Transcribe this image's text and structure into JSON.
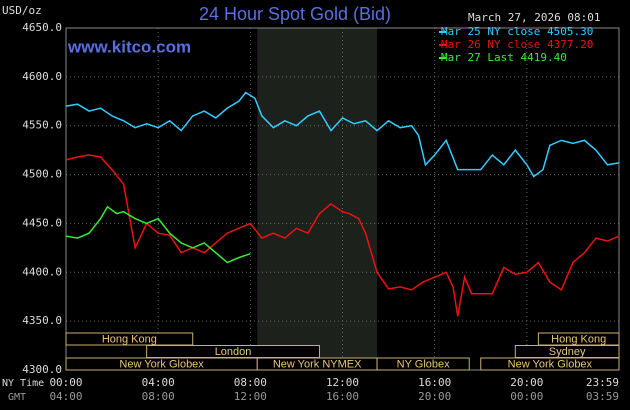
{
  "chart_data": {
    "type": "line",
    "title": "24 Hour Spot Gold (Bid)",
    "y_label": "USD/oz",
    "timestamp": "March 27, 2026 08:01",
    "source": "www.kitco.com",
    "x_label": "NY Time",
    "x2_label": "GMT",
    "xlim": [
      0,
      24
    ],
    "ylim": [
      4300,
      4650
    ],
    "xticks": [
      {
        "value": 0,
        "label": "00:00"
      },
      {
        "value": 4,
        "label": "04:00"
      },
      {
        "value": 8,
        "label": "08:00"
      },
      {
        "value": 12,
        "label": "12:00"
      },
      {
        "value": 16,
        "label": "16:00"
      },
      {
        "value": 20,
        "label": "20:00"
      },
      {
        "value": 24,
        "label": "23:59"
      }
    ],
    "x2tick_labels": [
      "04:00",
      "08:00",
      "12:00",
      "16:00",
      "20:00",
      "00:00",
      "03:59"
    ],
    "yticks": [
      {
        "value": 4300,
        "label": "4300.0"
      },
      {
        "value": 4350,
        "label": "4350.0"
      },
      {
        "value": 4400,
        "label": "4400.0"
      },
      {
        "value": 4450,
        "label": "4450.0"
      },
      {
        "value": 4500,
        "label": "4500.0"
      },
      {
        "value": 4550,
        "label": "4550.0"
      },
      {
        "value": 4600,
        "label": "4600.0"
      },
      {
        "value": 4650,
        "label": "4650.0"
      }
    ],
    "grid": true,
    "shade": [
      8.3,
      13.5
    ],
    "sessions": [
      {
        "label": "Hong Kong",
        "row": 0,
        "start": 0,
        "end": 5.5
      },
      {
        "label": "Hong Kong",
        "row": 0,
        "start": 20.5,
        "end": 24
      },
      {
        "label": "London",
        "row": 1,
        "start": 3.5,
        "end": 11
      },
      {
        "label": "Sydney",
        "row": 1,
        "start": 19.5,
        "end": 24
      },
      {
        "label": "New York Globex",
        "row": 2,
        "start": 0,
        "end": 8.3
      },
      {
        "label": "New York NYMEX",
        "row": 2,
        "start": 8.3,
        "end": 13.5
      },
      {
        "label": "NY Globex",
        "row": 2,
        "start": 13.5,
        "end": 17.5
      },
      {
        "label": "New York Globex",
        "row": 2,
        "start": 18,
        "end": 24
      }
    ],
    "series": [
      {
        "name": "Mar 25 NY close 4505.30",
        "color": "#33ccff",
        "x": [
          0,
          0.5,
          1,
          1.5,
          2,
          2.5,
          3,
          3.5,
          4,
          4.5,
          5,
          5.5,
          6,
          6.5,
          7,
          7.5,
          7.8,
          8.2,
          8.5,
          9,
          9.5,
          10,
          10.5,
          11,
          11.5,
          12,
          12.5,
          13,
          13.5,
          14,
          14.5,
          15,
          15.3,
          15.6,
          16,
          16.5,
          17,
          17.5,
          18,
          18.5,
          19,
          19.5,
          20,
          20.3,
          20.7,
          21,
          21.5,
          22,
          22.5,
          23,
          23.5,
          24
        ],
        "values": [
          4570,
          4572,
          4565,
          4568,
          4560,
          4555,
          4548,
          4552,
          4548,
          4555,
          4545,
          4560,
          4565,
          4558,
          4568,
          4575,
          4584,
          4578,
          4560,
          4548,
          4555,
          4550,
          4560,
          4565,
          4545,
          4558,
          4552,
          4555,
          4545,
          4555,
          4548,
          4550,
          4540,
          4510,
          4520,
          4535,
          4505,
          4505,
          4505,
          4520,
          4510,
          4525,
          4510,
          4498,
          4505,
          4530,
          4535,
          4532,
          4535,
          4525,
          4510,
          4512
        ]
      },
      {
        "name": "Mar 26 NY close 4377.20",
        "color": "#ee1111",
        "x": [
          0,
          0.5,
          1,
          1.5,
          2,
          2.5,
          3,
          3.5,
          4,
          4.5,
          5,
          5.5,
          6,
          6.5,
          7,
          7.5,
          8,
          8.5,
          9,
          9.5,
          10,
          10.5,
          11,
          11.5,
          12,
          12.3,
          12.7,
          13,
          13.5,
          14,
          14.5,
          15,
          15.5,
          16,
          16.5,
          16.8,
          17,
          17.3,
          17.6,
          18,
          18.5,
          19,
          19.5,
          20,
          20.5,
          21,
          21.5,
          22,
          22.5,
          23,
          23.5,
          24
        ],
        "values": [
          4515,
          4518,
          4520,
          4518,
          4505,
          4490,
          4425,
          4450,
          4440,
          4438,
          4420,
          4425,
          4420,
          4430,
          4440,
          4445,
          4450,
          4435,
          4440,
          4435,
          4445,
          4440,
          4460,
          4470,
          4462,
          4460,
          4455,
          4440,
          4400,
          4383,
          4385,
          4382,
          4390,
          4395,
          4400,
          4385,
          4355,
          4395,
          4378,
          4378,
          4378,
          4405,
          4398,
          4400,
          4410,
          4390,
          4382,
          4410,
          4420,
          4435,
          4432,
          4437
        ]
      },
      {
        "name": "Mar 27 Last 4419.40",
        "color": "#33ee33",
        "x": [
          0,
          0.5,
          1,
          1.5,
          1.8,
          2.2,
          2.5,
          3,
          3.5,
          4,
          4.5,
          5,
          5.5,
          6,
          6.5,
          7,
          7.5,
          8
        ],
        "values": [
          4437,
          4435,
          4440,
          4455,
          4467,
          4460,
          4462,
          4455,
          4450,
          4455,
          4440,
          4430,
          4425,
          4430,
          4420,
          4410,
          4415,
          4419
        ]
      }
    ]
  }
}
